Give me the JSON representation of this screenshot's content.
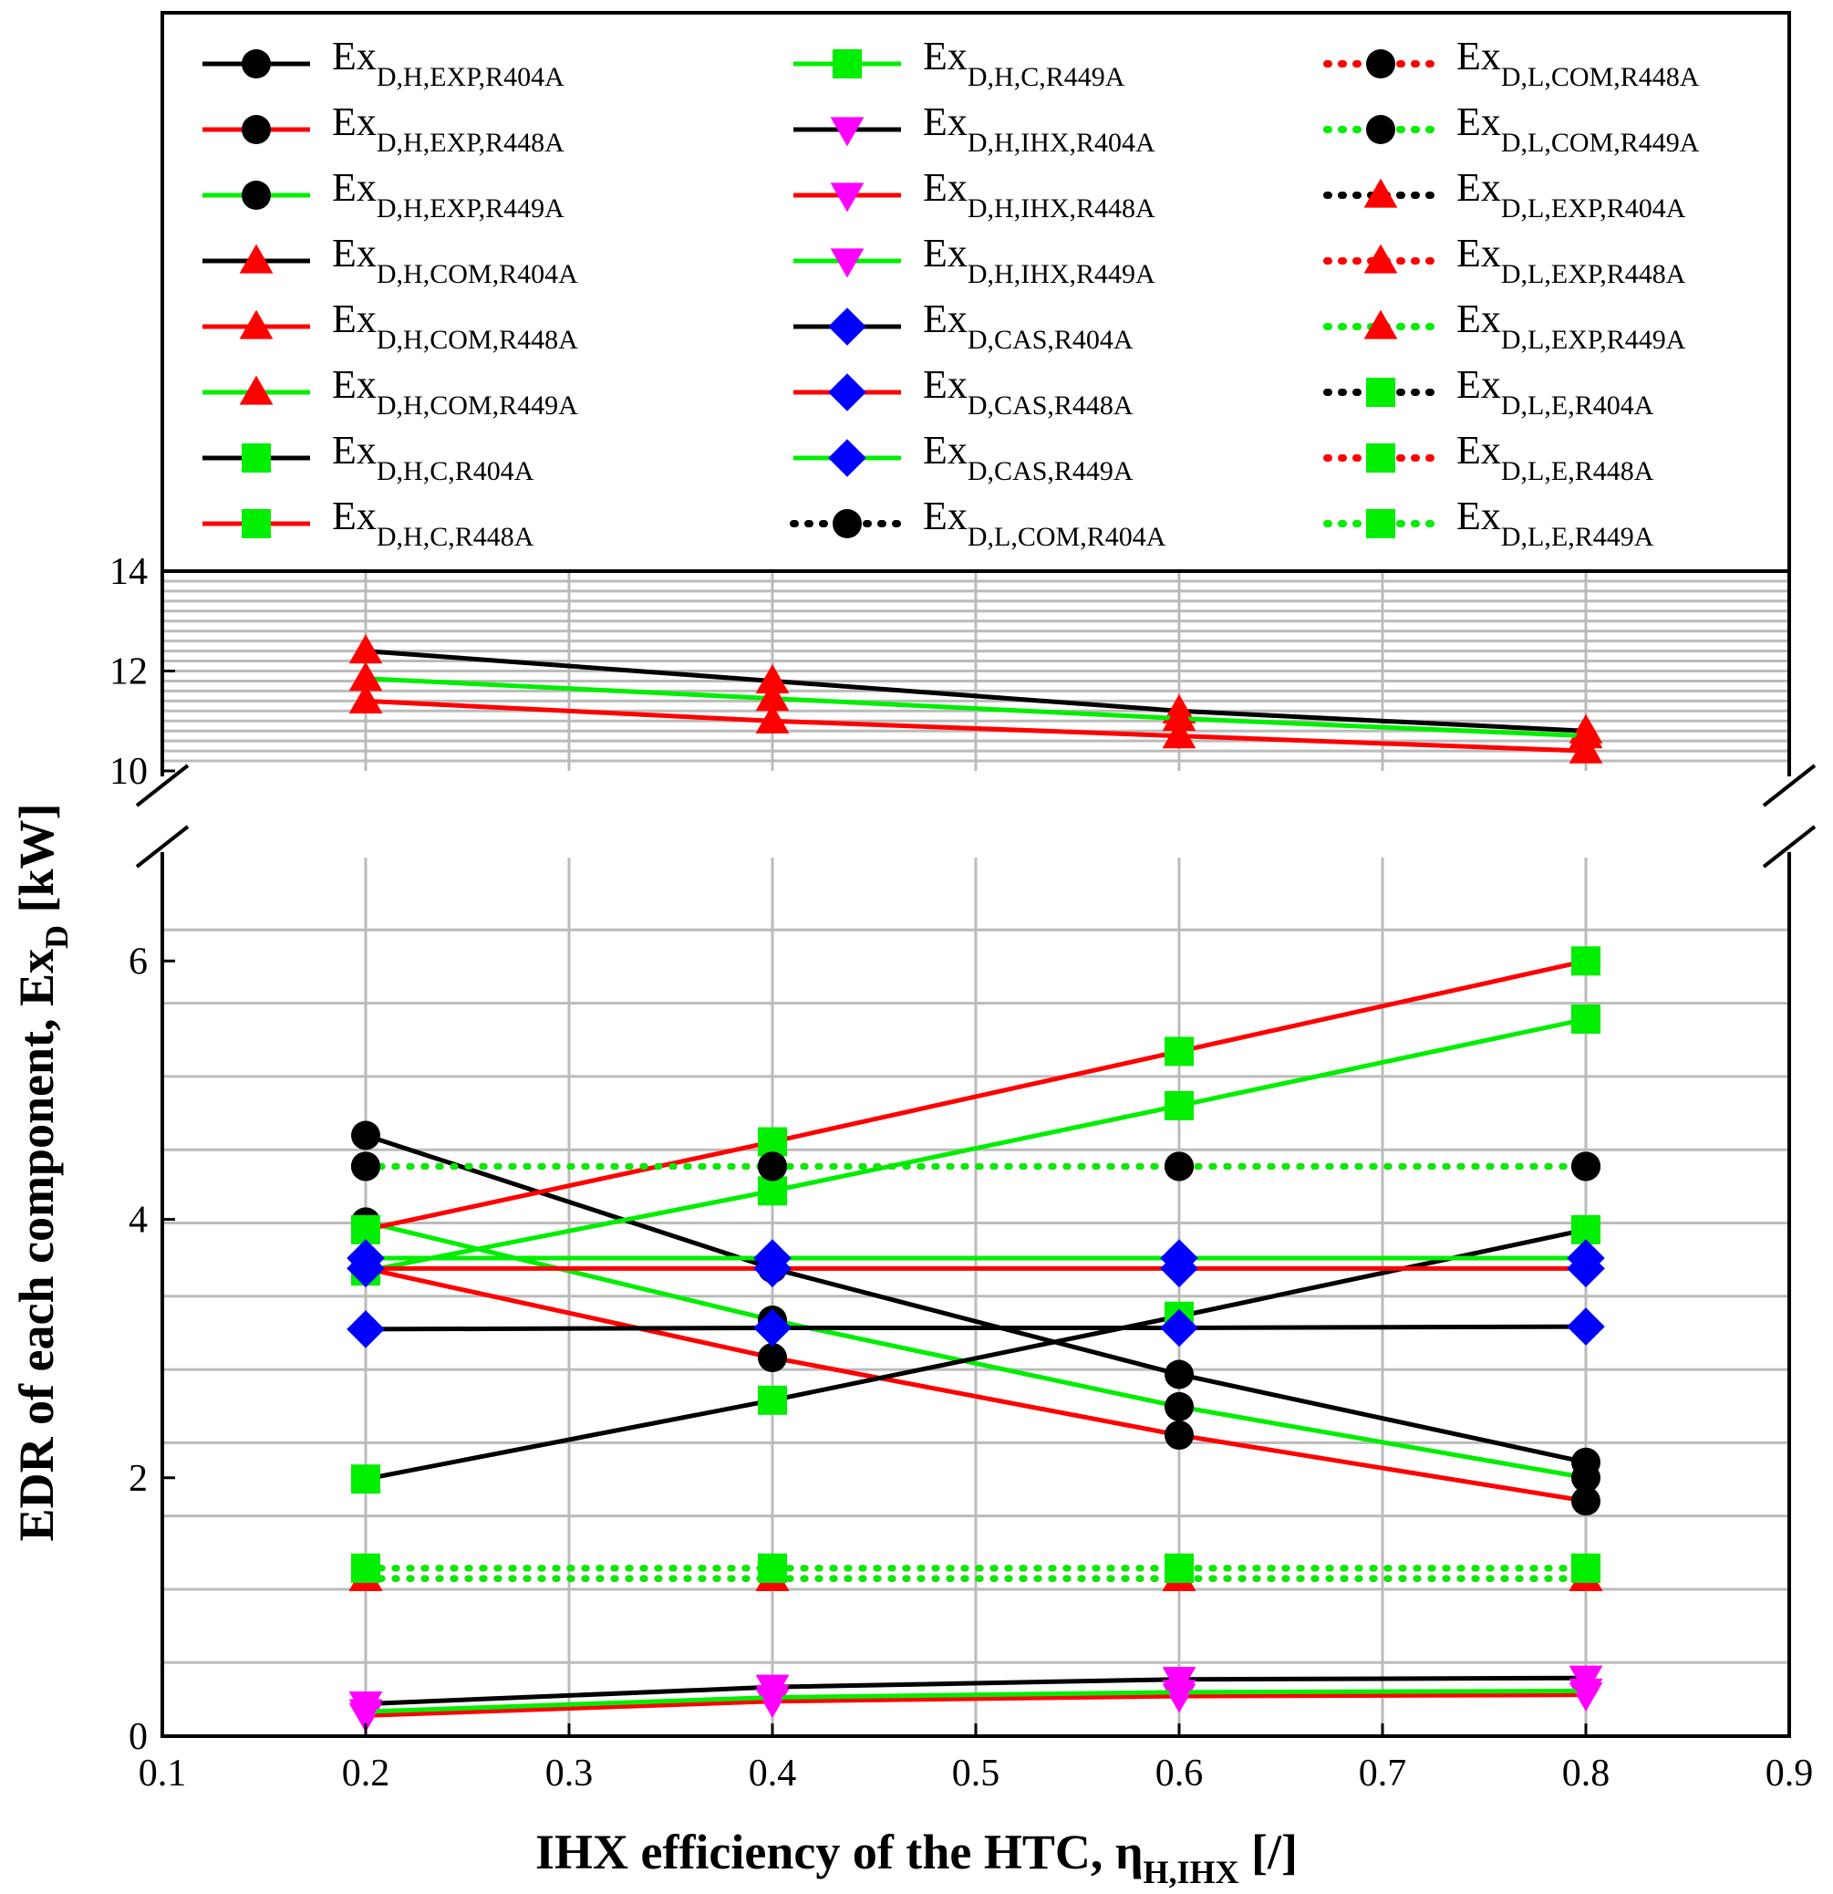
{
  "chart_data": {
    "type": "line",
    "xlabel_main": "IHX efficiency of the HTC, η",
    "xlabel_sub": "H,IHX",
    "xlabel_tail": " [/]",
    "ylabel_main": "EDR of each component, Ex",
    "ylabel_sub": "D",
    "ylabel_tail": " [kW]",
    "xlim": [
      0.1,
      0.9
    ],
    "x_ticks": [
      "0.1",
      "0.2",
      "0.3",
      "0.4",
      "0.5",
      "0.6",
      "0.7",
      "0.8",
      "0.9"
    ],
    "y_ticks_lower": [
      "0",
      "2",
      "4",
      "6"
    ],
    "y_ticks_upper": [
      "10",
      "12",
      "14"
    ],
    "ylim_lower": [
      0,
      6.8
    ],
    "ylim_upper": [
      10,
      14
    ],
    "grid": true,
    "legend_position": "top",
    "x": [
      0.2,
      0.4,
      0.6,
      0.8
    ],
    "series": [
      {
        "name": "Ex",
        "sub": "D,H,EXP,R404A",
        "line": "#000000",
        "marker": "circle",
        "style": "solid",
        "values": [
          4.65,
          3.62,
          2.8,
          2.12
        ]
      },
      {
        "name": "Ex",
        "sub": "D,H,EXP,R448A",
        "line": "#ff0000",
        "marker": "circle",
        "style": "solid",
        "values": [
          3.62,
          2.93,
          2.33,
          1.82
        ]
      },
      {
        "name": "Ex",
        "sub": "D,H,EXP,R449A",
        "line": "#00ee00",
        "marker": "circle",
        "style": "solid",
        "values": [
          3.98,
          3.22,
          2.55,
          2.0
        ]
      },
      {
        "name": "Ex",
        "sub": "D,H,COM,R404A",
        "line": "#000000",
        "marker": "triangle",
        "style": "solid",
        "values": [
          12.4,
          11.8,
          11.2,
          10.8
        ]
      },
      {
        "name": "Ex",
        "sub": "D,H,COM,R448A",
        "line": "#ff0000",
        "marker": "triangle",
        "style": "solid",
        "values": [
          11.4,
          11.0,
          10.7,
          10.4
        ]
      },
      {
        "name": "Ex",
        "sub": "D,H,COM,R449A",
        "line": "#00ee00",
        "marker": "triangle",
        "style": "solid",
        "values": [
          11.85,
          11.45,
          11.05,
          10.7
        ]
      },
      {
        "name": "Ex",
        "sub": "D,H,C,R404A",
        "line": "#000000",
        "marker": "square",
        "style": "solid",
        "values": [
          1.99,
          2.6,
          3.25,
          3.92
        ]
      },
      {
        "name": "Ex",
        "sub": "D,H,C,R448A",
        "line": "#ff0000",
        "marker": "square",
        "style": "solid",
        "values": [
          3.92,
          4.6,
          5.3,
          6.0
        ]
      },
      {
        "name": "Ex",
        "sub": "D,H,C,R449A",
        "line": "#00ee00",
        "marker": "square",
        "style": "solid",
        "values": [
          3.6,
          4.22,
          4.88,
          5.55
        ]
      },
      {
        "name": "Ex",
        "sub": "D,H,IHX,R404A",
        "line": "#000000",
        "marker": "triangle-down",
        "style": "solid",
        "values": [
          0.25,
          0.38,
          0.44,
          0.45
        ]
      },
      {
        "name": "Ex",
        "sub": "D,H,IHX,R448A",
        "line": "#ff0000",
        "marker": "triangle-down",
        "style": "solid",
        "values": [
          0.16,
          0.27,
          0.31,
          0.32
        ]
      },
      {
        "name": "Ex",
        "sub": "D,H,IHX,R449A",
        "line": "#00ee00",
        "marker": "triangle-down",
        "style": "solid",
        "values": [
          0.19,
          0.3,
          0.34,
          0.35
        ]
      },
      {
        "name": "Ex",
        "sub": "D,CAS,R404A",
        "line": "#000000",
        "marker": "diamond",
        "style": "solid",
        "values": [
          3.15,
          3.16,
          3.16,
          3.17
        ]
      },
      {
        "name": "Ex",
        "sub": "D,CAS,R448A",
        "line": "#ff0000",
        "marker": "diamond",
        "style": "solid",
        "values": [
          3.62,
          3.62,
          3.62,
          3.62
        ]
      },
      {
        "name": "Ex",
        "sub": "D,CAS,R449A",
        "line": "#00ee00",
        "marker": "diamond",
        "style": "solid",
        "values": [
          3.7,
          3.7,
          3.7,
          3.7
        ]
      },
      {
        "name": "Ex",
        "sub": "D,L,COM,R404A",
        "line": "#000000",
        "marker": "circle",
        "style": "dotted",
        "values": [
          4.41,
          4.41,
          4.41,
          4.41
        ]
      },
      {
        "name": "Ex",
        "sub": "D,L,COM,R448A",
        "line": "#ff0000",
        "marker": "circle",
        "style": "dotted",
        "values": [
          4.41,
          4.41,
          4.41,
          4.41
        ]
      },
      {
        "name": "Ex",
        "sub": "D,L,COM,R449A",
        "line": "#00ee00",
        "marker": "circle",
        "style": "dotted",
        "values": [
          4.41,
          4.41,
          4.41,
          4.41
        ]
      },
      {
        "name": "Ex",
        "sub": "D,L,EXP,R404A",
        "line": "#000000",
        "marker": "triangle",
        "style": "dotted",
        "values": [
          1.22,
          1.22,
          1.22,
          1.22
        ]
      },
      {
        "name": "Ex",
        "sub": "D,L,EXP,R448A",
        "line": "#ff0000",
        "marker": "triangle",
        "style": "dotted",
        "values": [
          1.22,
          1.22,
          1.22,
          1.22
        ]
      },
      {
        "name": "Ex",
        "sub": "D,L,EXP,R449A",
        "line": "#00ee00",
        "marker": "triangle",
        "style": "dotted",
        "values": [
          1.22,
          1.22,
          1.22,
          1.22
        ]
      },
      {
        "name": "Ex",
        "sub": "D,L,E,R404A",
        "line": "#000000",
        "marker": "square",
        "style": "dotted",
        "values": [
          1.3,
          1.3,
          1.3,
          1.3
        ]
      },
      {
        "name": "Ex",
        "sub": "D,L,E,R448A",
        "line": "#ff0000",
        "marker": "square",
        "style": "dotted",
        "values": [
          1.3,
          1.3,
          1.3,
          1.3
        ]
      },
      {
        "name": "Ex",
        "sub": "D,L,E,R449A",
        "line": "#00ee00",
        "marker": "square",
        "style": "dotted",
        "values": [
          1.3,
          1.3,
          1.3,
          1.3
        ]
      }
    ]
  }
}
